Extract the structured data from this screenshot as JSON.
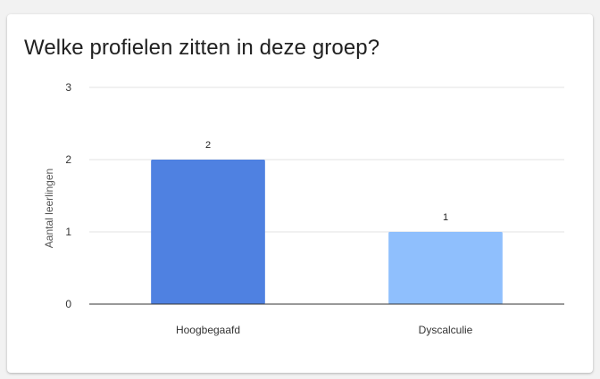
{
  "card": {
    "title": "Welke profielen zitten in deze groep?"
  },
  "chart_data": {
    "type": "bar",
    "title": "Welke profielen zitten in deze groep?",
    "xlabel": "",
    "ylabel": "Aantal leerlingen",
    "categories": [
      "Hoogbegaafd",
      "Dyscalculie"
    ],
    "values": [
      2,
      1
    ],
    "data_labels": [
      "2",
      "1"
    ],
    "bar_colors": [
      "#4f81e1",
      "#8fbffd"
    ],
    "ylim": [
      0,
      3
    ],
    "y_ticks": [
      0,
      1,
      2,
      3
    ],
    "grid": true,
    "legend": false
  }
}
